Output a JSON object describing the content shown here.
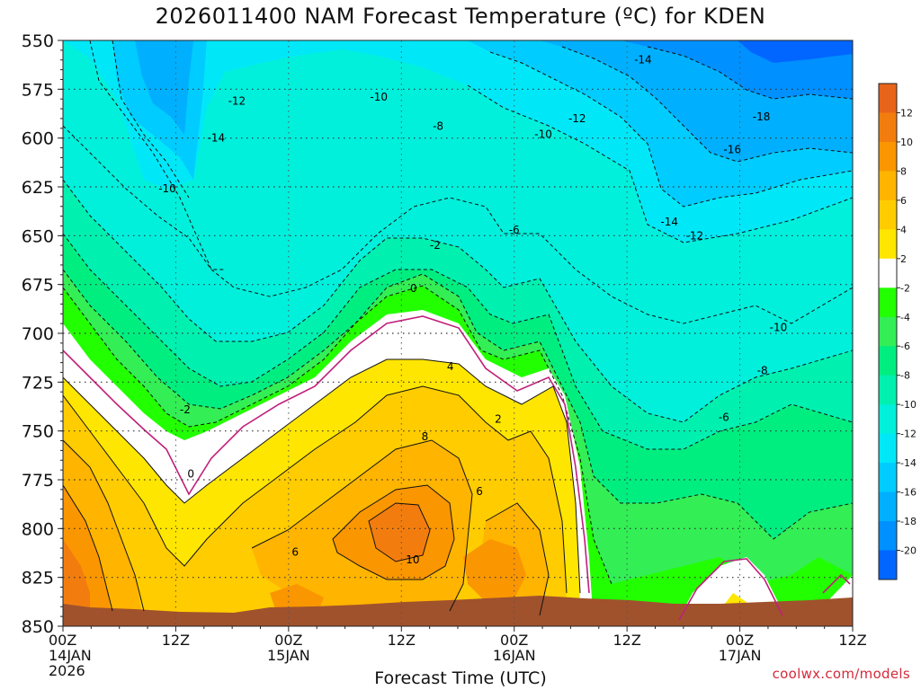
{
  "title": "2026011400 NAM Forecast Temperature (ºC) for KDEN",
  "xlabel": "Forecast Time (UTC)",
  "credit": "coolwx.com/models",
  "chart_data": {
    "type": "heatmap",
    "subtype": "time-pressure filled contour",
    "title": "2026011400 NAM Forecast Temperature (ºC) for KDEN",
    "xlabel": "Forecast Time (UTC)",
    "y_axis": {
      "inverted": true,
      "range": [
        850,
        550
      ],
      "ticks": [
        550,
        575,
        600,
        625,
        650,
        675,
        700,
        725,
        750,
        775,
        800,
        825,
        850
      ]
    },
    "x_axis": {
      "range_hours": [
        0,
        84
      ],
      "ticks": [
        {
          "hour": 0,
          "lines": [
            "00Z",
            "14JAN",
            "2026"
          ]
        },
        {
          "hour": 12,
          "lines": [
            "12Z"
          ]
        },
        {
          "hour": 24,
          "lines": [
            "00Z",
            "15JAN"
          ]
        },
        {
          "hour": 36,
          "lines": [
            "12Z"
          ]
        },
        {
          "hour": 48,
          "lines": [
            "00Z",
            "16JAN"
          ]
        },
        {
          "hour": 60,
          "lines": [
            "12Z"
          ]
        },
        {
          "hour": 72,
          "lines": [
            "00Z",
            "17JAN"
          ]
        },
        {
          "hour": 84,
          "lines": [
            "12Z"
          ]
        }
      ]
    },
    "grid": "dotted",
    "colorbar": {
      "placement": "right",
      "bins": [
        {
          "max": 14,
          "color": "#e8641a"
        },
        {
          "max": 12,
          "color": "#f27d0e"
        },
        {
          "max": 10,
          "color": "#fa9600"
        },
        {
          "max": 8,
          "color": "#ffb400"
        },
        {
          "max": 6,
          "color": "#ffcc00"
        },
        {
          "max": 4,
          "color": "#ffe600"
        },
        {
          "max": 2,
          "color": "#ffffff"
        },
        {
          "max": -2,
          "color": "#22ff00"
        },
        {
          "max": -4,
          "color": "#33ee55"
        },
        {
          "max": -6,
          "color": "#00ee80"
        },
        {
          "max": -8,
          "color": "#00f0b0"
        },
        {
          "max": -10,
          "color": "#00f0dc"
        },
        {
          "max": -12,
          "color": "#00e8f8"
        },
        {
          "max": -14,
          "color": "#00ccff"
        },
        {
          "max": -16,
          "color": "#00b0ff"
        },
        {
          "max": -18,
          "color": "#0090ff"
        },
        {
          "max": -20,
          "color": "#0066ff"
        }
      ],
      "labels": [
        12,
        10,
        8,
        6,
        4,
        2,
        -2,
        -4,
        -6,
        -8,
        -10,
        -12,
        -14,
        -16,
        -18,
        -20
      ]
    },
    "terrain_color": "#a0522d",
    "positive_contour_color": "#111111",
    "zero_contour_color": "#c0207a",
    "negative_contour_style": "dashed",
    "contour_labels": [
      {
        "text": "-14",
        "hour": 61.7,
        "p": 560
      },
      {
        "text": "-12",
        "hour": 18.5,
        "p": 581
      },
      {
        "text": "-10",
        "hour": 33.6,
        "p": 579
      },
      {
        "text": "-8",
        "hour": 39.9,
        "p": 594
      },
      {
        "text": "-10",
        "hour": 51.1,
        "p": 598
      },
      {
        "text": "-12",
        "hour": 54.7,
        "p": 590
      },
      {
        "text": "-18",
        "hour": 74.3,
        "p": 589
      },
      {
        "text": "-14",
        "hour": 16.3,
        "p": 600
      },
      {
        "text": "-16",
        "hour": 71.2,
        "p": 606
      },
      {
        "text": "-10",
        "hour": 11.1,
        "p": 626
      },
      {
        "text": "-14",
        "hour": 64.5,
        "p": 643
      },
      {
        "text": "-6",
        "hour": 48.0,
        "p": 647
      },
      {
        "text": "-12",
        "hour": 67.2,
        "p": 650
      },
      {
        "text": "-2",
        "hour": 39.6,
        "p": 655
      },
      {
        "text": "0",
        "hour": 37.3,
        "p": 677
      },
      {
        "text": "-10",
        "hour": 76.1,
        "p": 697
      },
      {
        "text": "4",
        "hour": 41.2,
        "p": 717
      },
      {
        "text": "-8",
        "hour": 74.4,
        "p": 719
      },
      {
        "text": "-2",
        "hour": 13.0,
        "p": 739
      },
      {
        "text": "2",
        "hour": 46.3,
        "p": 744
      },
      {
        "text": "-6",
        "hour": 70.3,
        "p": 743
      },
      {
        "text": "8",
        "hour": 38.5,
        "p": 753
      },
      {
        "text": "0",
        "hour": 13.6,
        "p": 772
      },
      {
        "text": "6",
        "hour": 44.3,
        "p": 781
      },
      {
        "text": "6",
        "hour": 24.7,
        "p": 812
      },
      {
        "text": "10",
        "hour": 37.2,
        "p": 816
      }
    ]
  }
}
